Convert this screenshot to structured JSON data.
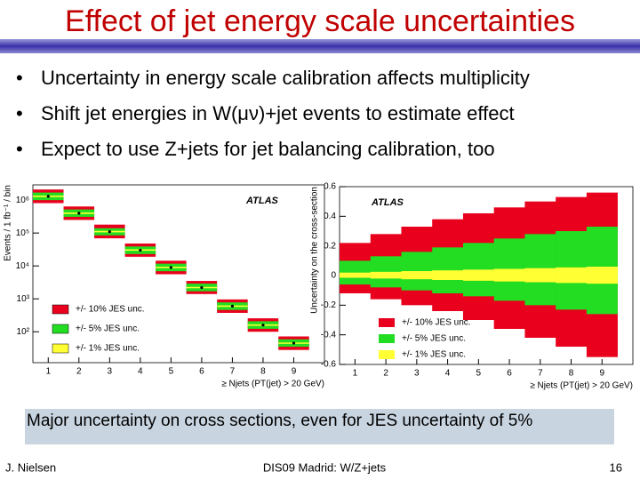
{
  "slide": {
    "title": "Effect of jet energy scale uncertainties",
    "bullets": [
      "Uncertainty in energy scale calibration affects multiplicity",
      "Shift jet energies in W(μν)+jet events to estimate effect",
      "Expect to use Z+jets for jet balancing calibration, too"
    ],
    "note": "Major uncertainty on cross sections, even for JES uncertainty of 5%",
    "footer": {
      "author": "J. Nielsen",
      "event": "DIS09 Madrid: W/Z+jets",
      "page": "16"
    }
  },
  "chart_data": [
    {
      "type": "errorbox",
      "annotation": "ATLAS",
      "ylabel": "Events / 1 fb⁻¹ / bin",
      "xlabel": "≥ Njets (PT(jet) > 20 GeV)",
      "log_y": true,
      "legend": "lower left",
      "marker_color": "#000000",
      "x": [
        1,
        2,
        3,
        4,
        5,
        6,
        7,
        8,
        9
      ],
      "values": [
        1300000,
        400000,
        110000,
        30000,
        9000,
        2200,
        600,
        160,
        45
      ],
      "xlim": [
        0.5,
        10
      ],
      "xticks": [
        1,
        2,
        3,
        4,
        5,
        6,
        7,
        8,
        9
      ],
      "ylim": [
        11.5,
        2900000
      ],
      "yticks": [
        {
          "value": 100,
          "label": "10²"
        },
        {
          "value": 1000,
          "label": "10³"
        },
        {
          "value": 10000,
          "label": "10⁴"
        },
        {
          "value": 100000,
          "label": "10⁵"
        },
        {
          "value": 1000000,
          "label": "10⁶"
        }
      ],
      "series": [
        {
          "name": "+/- 10% JES unc.",
          "color": "#e8001c",
          "low": [
            810000,
            250000,
            69000,
            19000,
            5600,
            1400,
            375,
            100,
            28
          ],
          "high": [
            2100000,
            640000,
            180000,
            48000,
            14400,
            3500,
            960,
            256,
            72
          ]
        },
        {
          "name": "+/- 5% JES unc.",
          "color": "#22dd22",
          "low": [
            1000000,
            310000,
            85000,
            23000,
            6900,
            1700,
            460,
            123,
            35
          ],
          "high": [
            1700000,
            520000,
            140000,
            39000,
            11700,
            2900,
            780,
            208,
            59
          ]
        },
        {
          "name": "+/- 1% JES unc.",
          "color": "#ffff33",
          "low": [
            1240000,
            380000,
            105000,
            29000,
            8600,
            2100,
            570,
            152,
            43
          ],
          "high": [
            1370000,
            420000,
            116000,
            32000,
            9500,
            2300,
            630,
            168,
            47
          ]
        }
      ]
    },
    {
      "type": "band",
      "annotation": "ATLAS",
      "ylabel": "Uncertainty on the cross-section",
      "xlabel": "≥ Njets (PT(jet) > 20 GeV)",
      "legend": "lower left",
      "x": [
        1,
        2,
        3,
        4,
        5,
        6,
        7,
        8,
        9
      ],
      "xlim": [
        0.5,
        10
      ],
      "xticks": [
        1,
        2,
        3,
        4,
        5,
        6,
        7,
        8,
        9
      ],
      "ylim": [
        -0.6,
        0.6
      ],
      "yticks": [
        -0.6,
        -0.4,
        -0.2,
        0,
        0.2,
        0.4,
        0.6
      ],
      "series": [
        {
          "name": "+/- 10% JES unc.",
          "color": "#e8001c",
          "low": [
            -0.12,
            -0.16,
            -0.2,
            -0.24,
            -0.3,
            -0.36,
            -0.42,
            -0.48,
            -0.55
          ],
          "high": [
            0.22,
            0.28,
            0.33,
            0.38,
            0.42,
            0.46,
            0.5,
            0.53,
            0.56
          ]
        },
        {
          "name": "+/- 5% JES unc.",
          "color": "#22dd22",
          "low": [
            -0.06,
            -0.08,
            -0.1,
            -0.12,
            -0.14,
            -0.17,
            -0.2,
            -0.23,
            -0.26
          ],
          "high": [
            0.1,
            0.13,
            0.16,
            0.19,
            0.22,
            0.25,
            0.28,
            0.3,
            0.33
          ]
        },
        {
          "name": "+/- 1% JES unc.",
          "color": "#ffff33",
          "low": [
            -0.015,
            -0.02,
            -0.025,
            -0.03,
            -0.035,
            -0.04,
            -0.045,
            -0.05,
            -0.055
          ],
          "high": [
            0.02,
            0.025,
            0.03,
            0.035,
            0.04,
            0.045,
            0.05,
            0.055,
            0.06
          ]
        }
      ]
    }
  ]
}
